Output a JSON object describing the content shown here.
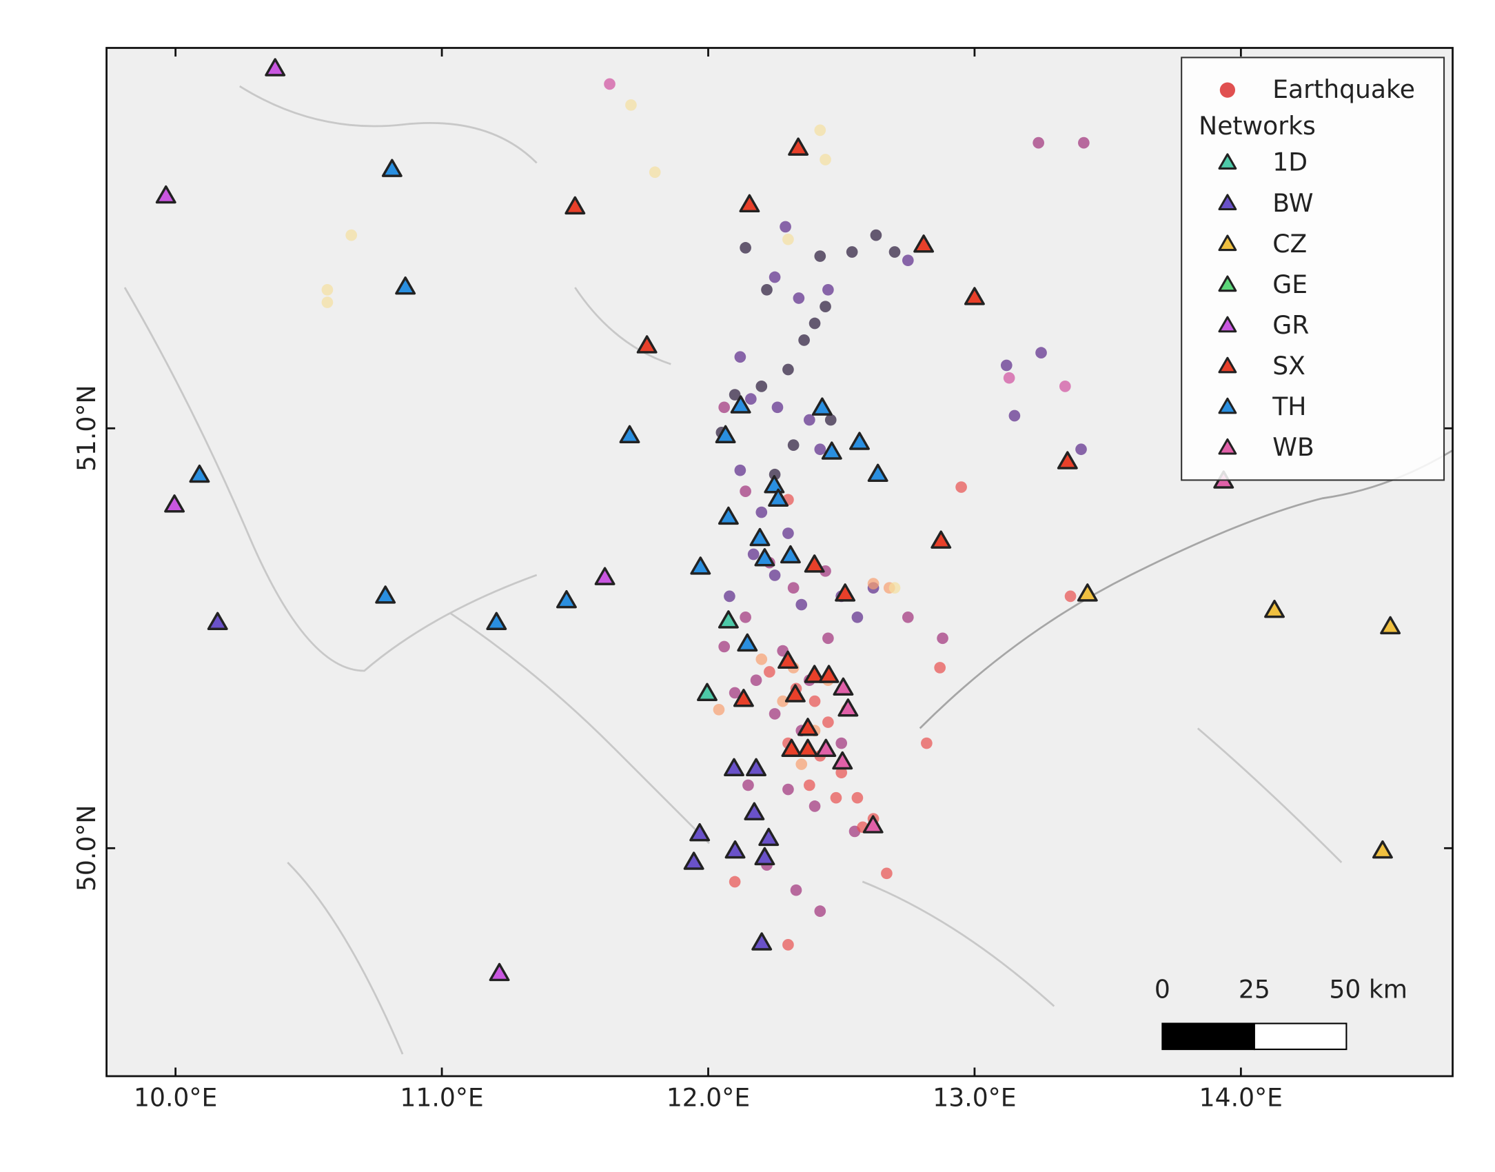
{
  "chart_data": {
    "type": "map",
    "xlim": [
      9.741,
      14.795
    ],
    "ylim": [
      49.457,
      51.906
    ],
    "xticks": [
      {
        "value": 10,
        "label": "10.0°E"
      },
      {
        "value": 11,
        "label": "11.0°E"
      },
      {
        "value": 12,
        "label": "12.0°E"
      },
      {
        "value": 13,
        "label": "13.0°E"
      },
      {
        "value": 14,
        "label": "14.0°E"
      }
    ],
    "yticks": [
      {
        "value": 50,
        "label": "50.0°N"
      },
      {
        "value": 51,
        "label": "51.0°N"
      }
    ],
    "legend": "upper right",
    "legend_title": "Networks",
    "earthquakes": {
      "name": "Earthquake",
      "color": "#e05050",
      "x": [
        12.14,
        12.22,
        12.42,
        12.54,
        12.44,
        12.4,
        12.36,
        12.3,
        12.2,
        12.1,
        12.46,
        12.32,
        12.25,
        12.05,
        12.7,
        12.63,
        12.29,
        12.25,
        12.34,
        12.45,
        12.12,
        12.16,
        12.26,
        12.38,
        12.42,
        12.12,
        12.2,
        12.3,
        12.17,
        12.25,
        12.08,
        12.35,
        12.5,
        12.56,
        12.62,
        12.75,
        13.4,
        13.25,
        13.12,
        13.15,
        12.06,
        12.14,
        12.23,
        12.32,
        12.44,
        12.14,
        12.06,
        12.28,
        12.45,
        12.18,
        12.38,
        12.1,
        12.25,
        12.35,
        12.5,
        12.3,
        12.15,
        12.4,
        12.33,
        12.42,
        12.22,
        12.55,
        13.24,
        13.41,
        12.88,
        12.75,
        12.23,
        12.33,
        12.4,
        12.45,
        12.3,
        12.42,
        12.5,
        12.38,
        12.48,
        12.62,
        12.67,
        12.3,
        12.1,
        12.82,
        12.87,
        12.3,
        12.58,
        12.95,
        13.36,
        12.56,
        12.2,
        12.32,
        12.45,
        12.4,
        12.52,
        12.35,
        12.28,
        12.62,
        12.68,
        12.04,
        10.66,
        10.57,
        10.57,
        11.8,
        11.71,
        12.44,
        12.42,
        12.3,
        12.7,
        11.63,
        13.34,
        13.13
      ],
      "y": [
        51.43,
        51.33,
        51.41,
        51.42,
        51.29,
        51.25,
        51.21,
        51.14,
        51.1,
        51.08,
        51.02,
        50.96,
        50.89,
        50.99,
        51.42,
        51.46,
        51.48,
        51.36,
        51.31,
        51.33,
        51.17,
        51.07,
        51.05,
        51.02,
        50.95,
        50.9,
        50.8,
        50.75,
        50.7,
        50.65,
        50.6,
        50.58,
        50.6,
        50.55,
        50.62,
        51.4,
        50.95,
        51.18,
        51.15,
        51.03,
        51.05,
        50.85,
        50.68,
        50.62,
        50.66,
        50.55,
        50.48,
        50.47,
        50.5,
        50.4,
        50.4,
        50.37,
        50.32,
        50.28,
        50.25,
        50.14,
        50.15,
        50.1,
        49.9,
        49.85,
        49.96,
        50.04,
        51.68,
        51.68,
        50.5,
        50.55,
        50.42,
        50.38,
        50.35,
        50.3,
        50.25,
        50.22,
        50.18,
        50.15,
        50.12,
        50.07,
        49.94,
        49.77,
        49.92,
        50.25,
        50.43,
        50.83,
        50.05,
        50.86,
        50.6,
        50.12,
        50.45,
        50.43,
        50.4,
        50.28,
        50.33,
        50.2,
        50.35,
        50.63,
        50.62,
        50.33,
        51.46,
        51.33,
        51.3,
        51.61,
        51.77,
        51.64,
        51.71,
        51.45,
        50.62,
        51.82,
        51.1,
        51.12
      ],
      "colors": [
        "#2a1a3a",
        "#2a1a3a",
        "#2a1a3a",
        "#2a1a3a",
        "#2a1a3a",
        "#2a1a3a",
        "#2a1a3a",
        "#2a1a3a",
        "#2a1a3a",
        "#2a1a3a",
        "#2a1a3a",
        "#2a1a3a",
        "#2a1a3a",
        "#2a1a3a",
        "#2a1a3a",
        "#2a1a3a",
        "#5b2a8a",
        "#5b2a8a",
        "#5b2a8a",
        "#5b2a8a",
        "#5b2a8a",
        "#5b2a8a",
        "#5b2a8a",
        "#5b2a8a",
        "#5b2a8a",
        "#5b2a8a",
        "#5b2a8a",
        "#5b2a8a",
        "#5b2a8a",
        "#5b2a8a",
        "#5b2a8a",
        "#5b2a8a",
        "#5b2a8a",
        "#5b2a8a",
        "#5b2a8a",
        "#5b2a8a",
        "#5b2a8a",
        "#5b2a8a",
        "#5b2a8a",
        "#5b2a8a",
        "#a0307a",
        "#a0307a",
        "#a0307a",
        "#a0307a",
        "#a0307a",
        "#a0307a",
        "#a0307a",
        "#a0307a",
        "#a0307a",
        "#a0307a",
        "#a0307a",
        "#a0307a",
        "#a0307a",
        "#a0307a",
        "#a0307a",
        "#a0307a",
        "#a0307a",
        "#a0307a",
        "#a0307a",
        "#a0307a",
        "#a0307a",
        "#a0307a",
        "#a0307a",
        "#a0307a",
        "#a0307a",
        "#a0307a",
        "#e8504f",
        "#e8504f",
        "#e8504f",
        "#e8504f",
        "#e8504f",
        "#e8504f",
        "#e8504f",
        "#e8504f",
        "#e8504f",
        "#e8504f",
        "#e8504f",
        "#e8504f",
        "#e8504f",
        "#e8504f",
        "#e8504f",
        "#e8504f",
        "#e8504f",
        "#e8504f",
        "#e8504f",
        "#e8504f",
        "#f8a070",
        "#f8a070",
        "#f8a070",
        "#f8a070",
        "#f8a070",
        "#f8a070",
        "#f8a070",
        "#f8a070",
        "#f8a070",
        "#f8a070",
        "#f5dfa0",
        "#f5dfa0",
        "#f5dfa0",
        "#f5dfa0",
        "#f5dfa0",
        "#f5dfa0",
        "#f5dfa0",
        "#f5dfa0",
        "#f5dfa0",
        "#d050a0",
        "#d050a0",
        "#d050a0"
      ]
    },
    "series": [
      {
        "name": "1D",
        "color": "#4dc9a8",
        "x": [
          12.076,
          11.996
        ],
        "y": [
          50.541,
          50.368
        ]
      },
      {
        "name": "BW",
        "color": "#6a52c9",
        "x": [
          10.158,
          12.097,
          12.18,
          12.173,
          11.968,
          11.946,
          12.101,
          12.227,
          12.212,
          12.201
        ],
        "y": [
          50.537,
          50.189,
          50.189,
          50.084,
          50.034,
          49.966,
          49.993,
          50.023,
          49.977,
          49.774
        ]
      },
      {
        "name": "CZ",
        "color": "#f0c040",
        "x": [
          13.424,
          14.126,
          14.561,
          14.532
        ],
        "y": [
          50.605,
          50.566,
          50.527,
          49.993
        ]
      },
      {
        "name": "GE",
        "color": "#5cd67a",
        "x": [],
        "y": []
      },
      {
        "name": "GR",
        "color": "#c957e0",
        "x": [
          10.374,
          9.964,
          9.996,
          11.612,
          11.216
        ],
        "y": [
          51.856,
          51.553,
          50.817,
          50.644,
          49.701
        ]
      },
      {
        "name": "SX",
        "color": "#e8402a",
        "x": [
          12.338,
          11.5,
          12.155,
          12.809,
          13.0,
          11.77,
          13.349,
          12.874,
          12.399,
          12.514,
          12.299,
          12.399,
          12.453,
          12.133,
          12.327,
          12.374,
          12.313,
          12.374
        ],
        "y": [
          51.667,
          51.527,
          51.532,
          51.436,
          51.311,
          51.196,
          50.92,
          50.731,
          50.674,
          50.605,
          50.445,
          50.411,
          50.411,
          50.354,
          50.365,
          50.285,
          50.235,
          50.235
        ]
      },
      {
        "name": "TH",
        "color": "#2a8fe0",
        "x": [
          10.813,
          10.863,
          10.09,
          11.705,
          10.788,
          11.205,
          11.468,
          12.122,
          12.065,
          12.428,
          12.464,
          12.568,
          12.637,
          12.248,
          12.263,
          12.076,
          12.194,
          12.212,
          12.309,
          11.971,
          12.147
        ],
        "y": [
          51.616,
          51.336,
          50.888,
          50.982,
          50.6,
          50.537,
          50.589,
          51.053,
          50.982,
          51.048,
          50.943,
          50.966,
          50.89,
          50.863,
          50.831,
          50.788,
          50.737,
          50.689,
          50.696,
          50.669,
          50.486
        ]
      },
      {
        "name": "WB",
        "color": "#e060a8",
        "x": [
          12.507,
          12.525,
          12.442,
          12.504,
          12.619,
          13.935
        ],
        "y": [
          50.381,
          50.331,
          50.235,
          50.205,
          50.053,
          50.874
        ]
      }
    ],
    "scalebar": {
      "ticks": [
        0,
        25,
        {
          "value": 50,
          "label": "50 km"
        }
      ]
    }
  }
}
